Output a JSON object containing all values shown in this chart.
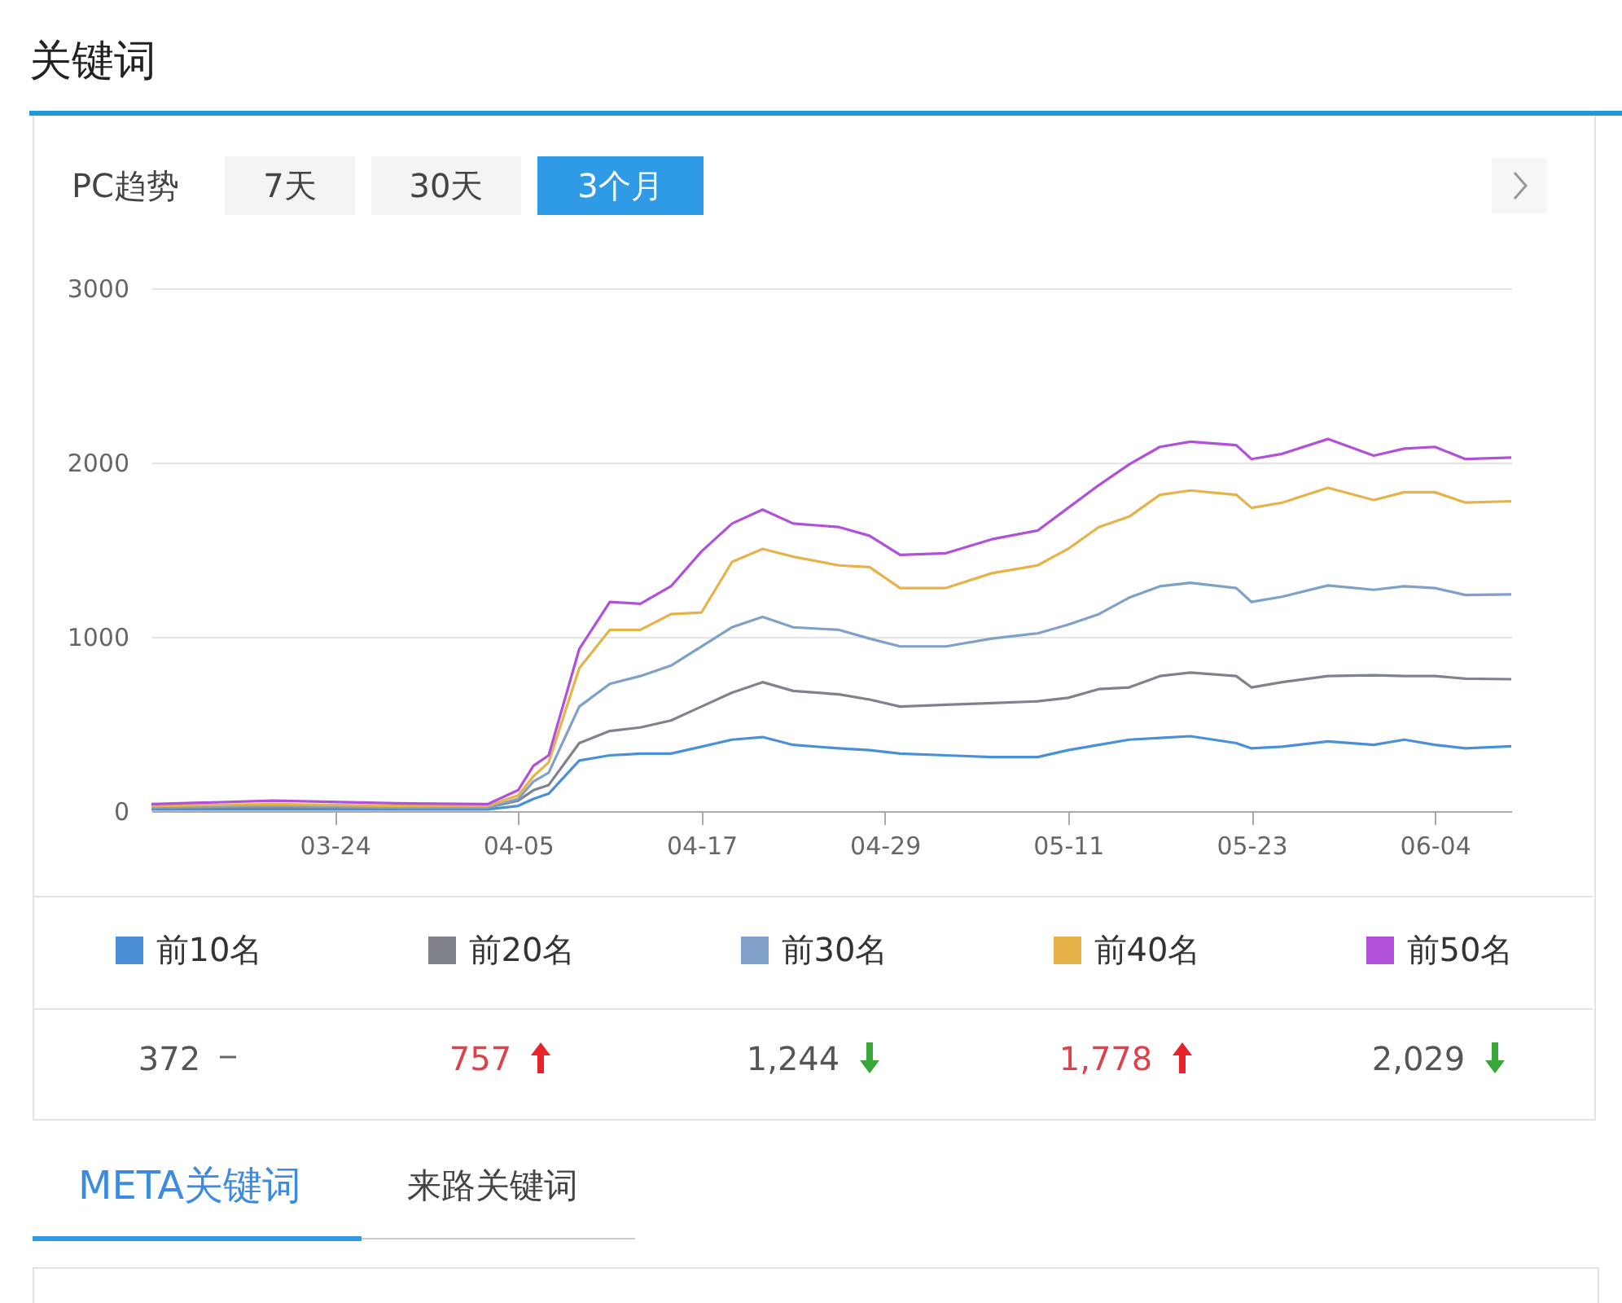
{
  "chart_data": {
    "type": "line",
    "title": "关键词",
    "annotations": [
      "PC趋势",
      "7天",
      "30天",
      "3个月",
      "372",
      "757",
      "1,244",
      "1,778",
      "2,029",
      "META关键词",
      "来路关键词"
    ],
    "x": [
      "--03-12",
      "--03-20",
      "--03-28",
      "--04-03",
      "--04-05",
      "--04-06",
      "--04-07",
      "--04-09",
      "--04-11",
      "--04-13",
      "--04-15",
      "--04-17",
      "--04-19",
      "--04-21",
      "--04-23",
      "--04-26",
      "--04-28",
      "--04-30",
      "--05-03",
      "--05-06",
      "--05-09",
      "--05-11",
      "--05-13",
      "--05-15",
      "--05-17",
      "--05-19",
      "--05-22",
      "--05-23",
      "--05-25",
      "--05-28",
      "--05-31",
      "--06-02",
      "--06-04",
      "--06-06",
      "--06-09"
    ],
    "series": [
      {
        "name": "前10名",
        "color": "#4a90d9",
        "values": [
          10,
          10,
          10,
          10,
          30,
          70,
          100,
          290,
          320,
          330,
          330,
          370,
          410,
          425,
          380,
          360,
          350,
          330,
          320,
          310,
          310,
          350,
          380,
          410,
          420,
          430,
          390,
          360,
          370,
          400,
          380,
          410,
          380,
          360,
          372
        ]
      },
      {
        "name": "前20名",
        "color": "#80838c",
        "values": [
          20,
          20,
          20,
          20,
          60,
          120,
          150,
          390,
          460,
          480,
          520,
          600,
          680,
          740,
          690,
          670,
          640,
          600,
          610,
          620,
          630,
          650,
          700,
          710,
          775,
          795,
          775,
          710,
          740,
          775,
          780,
          775,
          775,
          760,
          757
        ]
      },
      {
        "name": "前30名",
        "color": "#7fa0c8",
        "values": [
          20,
          30,
          20,
          20,
          70,
          170,
          220,
          600,
          730,
          775,
          835,
          945,
          1055,
          1115,
          1055,
          1040,
          990,
          945,
          945,
          990,
          1020,
          1070,
          1130,
          1225,
          1290,
          1310,
          1280,
          1200,
          1230,
          1295,
          1270,
          1290,
          1280,
          1240,
          1244
        ]
      },
      {
        "name": "前40名",
        "color": "#e6b24a",
        "values": [
          30,
          40,
          30,
          30,
          90,
          200,
          280,
          820,
          1040,
          1040,
          1130,
          1140,
          1430,
          1505,
          1460,
          1410,
          1400,
          1280,
          1280,
          1365,
          1410,
          1505,
          1630,
          1690,
          1815,
          1840,
          1815,
          1740,
          1770,
          1855,
          1785,
          1830,
          1830,
          1770,
          1778
        ]
      },
      {
        "name": "前50名",
        "color": "#b150d8",
        "values": [
          40,
          60,
          45,
          40,
          120,
          260,
          320,
          930,
          1200,
          1190,
          1290,
          1490,
          1650,
          1730,
          1650,
          1630,
          1580,
          1470,
          1480,
          1560,
          1610,
          1740,
          1870,
          1990,
          2090,
          2120,
          2100,
          2020,
          2050,
          2135,
          2040,
          2080,
          2090,
          2020,
          2029
        ]
      }
    ],
    "xlim": [
      "--03-12",
      "--06-09"
    ],
    "xticks": [
      {
        "value": "--03-24",
        "label": "03-24"
      },
      {
        "value": "--04-05",
        "label": "04-05"
      },
      {
        "value": "--04-17",
        "label": "04-17"
      },
      {
        "value": "--04-29",
        "label": "04-29"
      },
      {
        "value": "--05-11",
        "label": "05-11"
      },
      {
        "value": "--05-23",
        "label": "05-23"
      },
      {
        "value": "--06-04",
        "label": "06-04"
      }
    ],
    "ylim": [
      0,
      3000
    ],
    "yticks": [
      0,
      1000,
      2000,
      3000
    ],
    "grid": "y",
    "legend": "bottom",
    "line_style": "solid",
    "marker": "none"
  }
}
